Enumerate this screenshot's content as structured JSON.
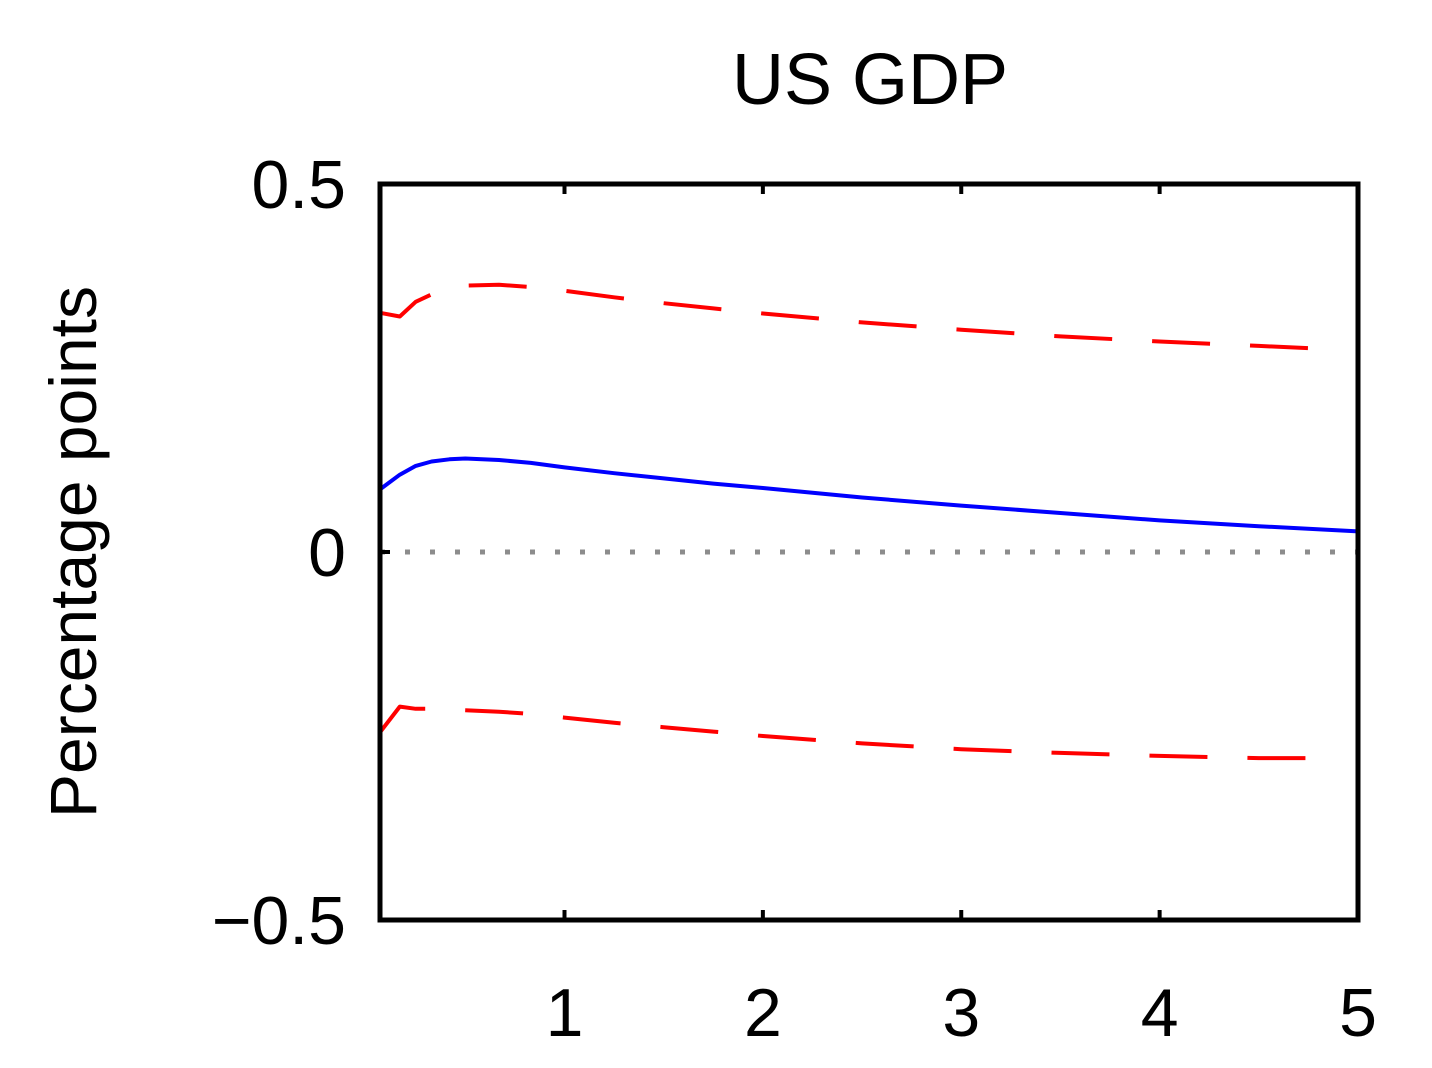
{
  "chart_data": {
    "type": "line",
    "title": "US GDP",
    "xlabel": "",
    "ylabel": "Percentage points",
    "xlim": [
      0.07,
      5
    ],
    "ylim": [
      -0.5,
      0.5
    ],
    "xticks": [
      1,
      2,
      3,
      4,
      5
    ],
    "xtick_labels": [
      "1",
      "2",
      "3",
      "4",
      "5"
    ],
    "yticks": [
      -0.5,
      0,
      0.5
    ],
    "ytick_labels": [
      "−0.5",
      "0",
      "0.5"
    ],
    "grid": false,
    "zero_line": {
      "y": 0,
      "style": "dotted",
      "color": "#8c8c8c"
    },
    "series": [
      {
        "style": "solid",
        "color": "#0000ff",
        "x": [
          0.07,
          0.17,
          0.25,
          0.33,
          0.42,
          0.5,
          0.67,
          0.83,
          1.0,
          1.25,
          1.5,
          1.75,
          2.0,
          2.5,
          3.0,
          3.5,
          4.0,
          4.5,
          5.0
        ],
        "y": [
          0.085,
          0.105,
          0.117,
          0.123,
          0.126,
          0.127,
          0.125,
          0.121,
          0.115,
          0.107,
          0.1,
          0.093,
          0.087,
          0.074,
          0.063,
          0.053,
          0.043,
          0.035,
          0.028
        ]
      },
      {
        "style": "dashed",
        "color": "#ff0000",
        "x": [
          0.07,
          0.17,
          0.25,
          0.33,
          0.42,
          0.5,
          0.67,
          0.83,
          1.0,
          1.25,
          1.5,
          1.75,
          2.0,
          2.5,
          3.0,
          3.5,
          4.0,
          4.5,
          4.75
        ],
        "y": [
          0.325,
          0.32,
          0.34,
          0.35,
          0.36,
          0.362,
          0.363,
          0.36,
          0.355,
          0.346,
          0.338,
          0.331,
          0.324,
          0.312,
          0.302,
          0.293,
          0.286,
          0.28,
          0.277
        ]
      },
      {
        "style": "dashed",
        "color": "#ff0000",
        "x": [
          0.07,
          0.17,
          0.25,
          0.33,
          0.42,
          0.5,
          0.67,
          0.83,
          1.0,
          1.25,
          1.5,
          1.75,
          2.0,
          2.5,
          3.0,
          3.5,
          4.0,
          4.5,
          4.75
        ],
        "y": [
          -0.245,
          -0.21,
          -0.213,
          -0.213,
          -0.214,
          -0.215,
          -0.217,
          -0.22,
          -0.225,
          -0.232,
          -0.238,
          -0.244,
          -0.25,
          -0.26,
          -0.268,
          -0.273,
          -0.277,
          -0.28,
          -0.28
        ]
      }
    ]
  }
}
